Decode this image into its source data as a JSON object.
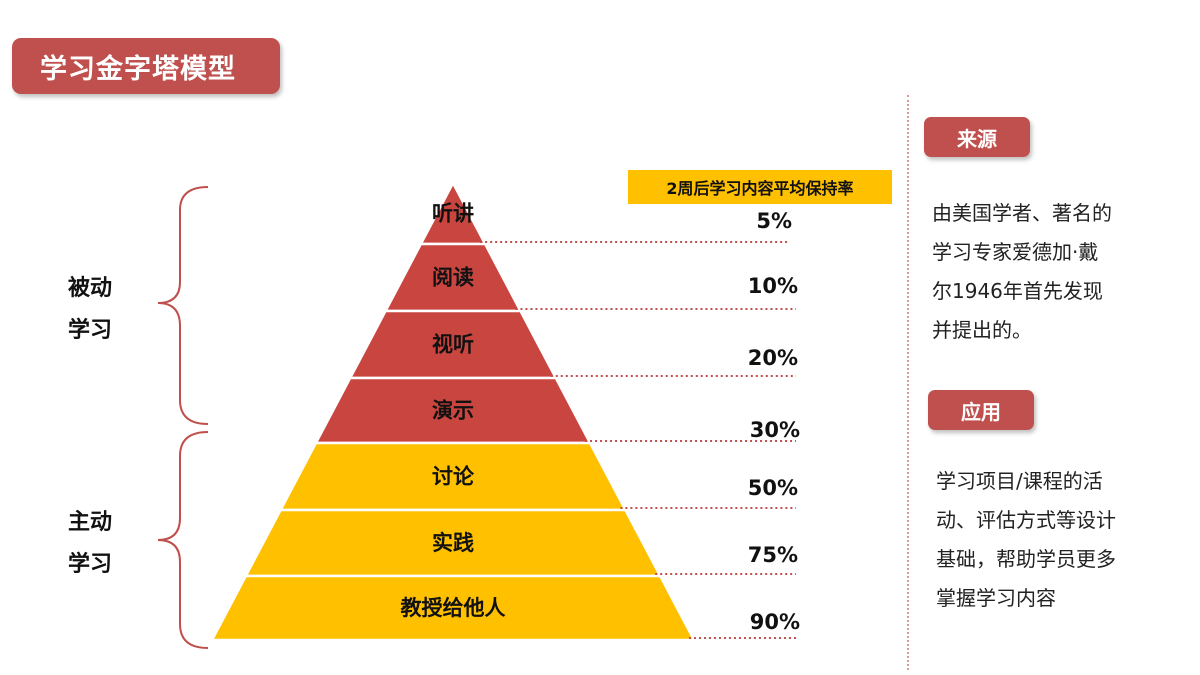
{
  "title": "学习金字塔模型",
  "groups": [
    {
      "label_line1": "被动",
      "label_line2": "学习"
    },
    {
      "label_line1": "主动",
      "label_line2": "学习"
    }
  ],
  "retention_header": "2周后学习内容平均保持率",
  "levels": [
    {
      "label": "听讲",
      "percent": "5%",
      "group": "passive"
    },
    {
      "label": "阅读",
      "percent": "10%",
      "group": "passive"
    },
    {
      "label": "视听",
      "percent": "20%",
      "group": "passive"
    },
    {
      "label": "演示",
      "percent": "30%",
      "group": "passive"
    },
    {
      "label": "讨论",
      "percent": "50%",
      "group": "active"
    },
    {
      "label": "实践",
      "percent": "75%",
      "group": "active"
    },
    {
      "label": "教授给他人",
      "percent": "90%",
      "group": "active"
    }
  ],
  "colors": {
    "passive": "#c9453f",
    "active": "#ffc000",
    "accent": "#c0504d",
    "dotted": "#c0504d"
  },
  "source": {
    "tag": "来源",
    "lines": [
      "由美国学者、著名的",
      "学习专家爱德加·戴",
      "尔1946年首先发现",
      "并提出的。"
    ]
  },
  "application": {
    "tag": "应用",
    "lines": [
      "学习项目/课程的活",
      "动、评估方式等设计",
      "基础，帮助学员更多",
      "掌握学习内容"
    ]
  }
}
